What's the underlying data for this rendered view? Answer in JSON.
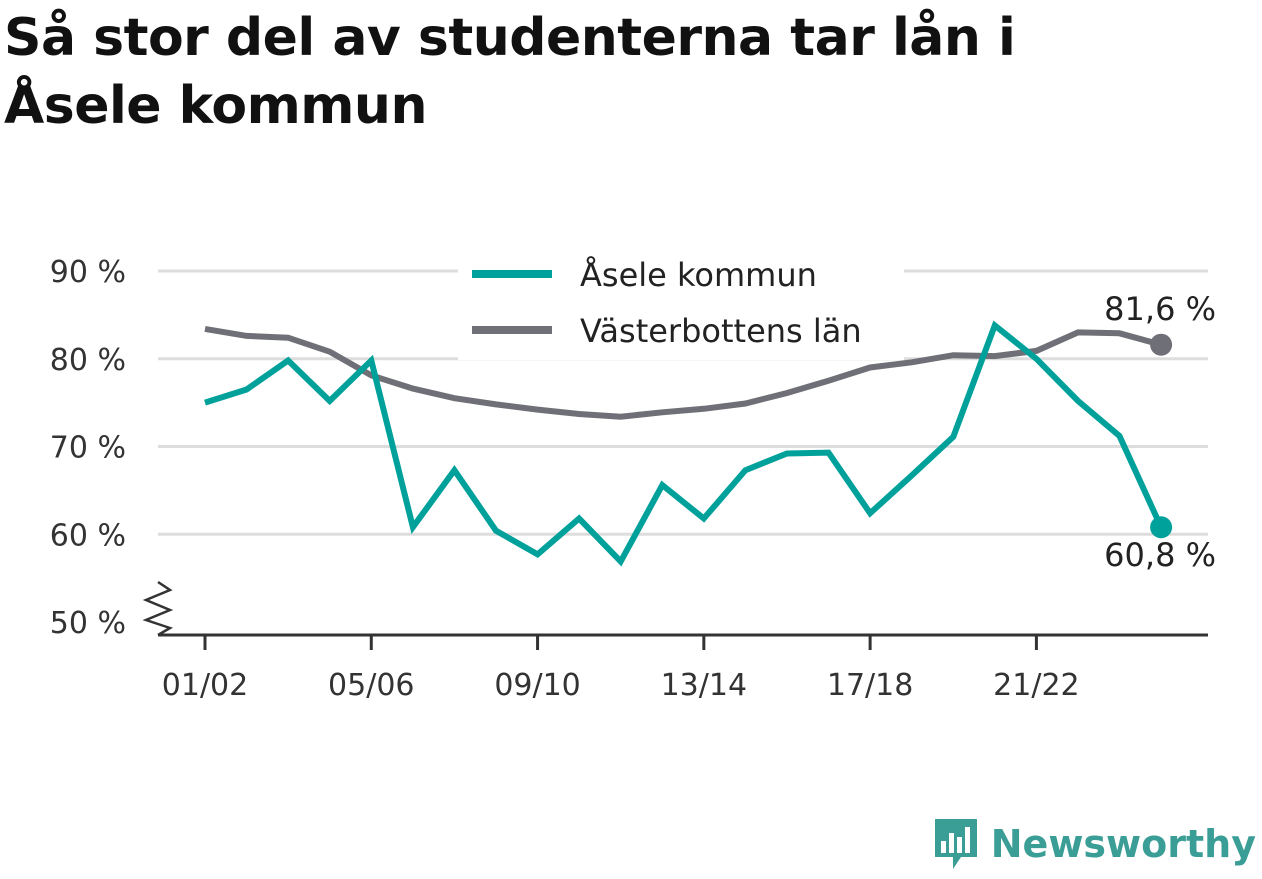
{
  "title": "Så stor del av studenterna tar lån i Åsele kommun",
  "colors": {
    "series_1": "#00a19a",
    "series_2": "#6f6f77",
    "grid": "#dddddd",
    "axis": "#333333",
    "brand": "#3a9d96"
  },
  "legend": {
    "items": [
      "Åsele kommun",
      "Västerbottens län"
    ]
  },
  "end_labels": {
    "series_1": "60,8 %",
    "series_2": "81,6 %"
  },
  "logo": {
    "text": "Newsworthy",
    "icon": "bar-chart-icon"
  },
  "chart_data": {
    "type": "line",
    "title": "Så stor del av studenterna tar lån i Åsele kommun",
    "xlabel": "",
    "ylabel": "",
    "x": [
      "01/02",
      "02/03",
      "03/04",
      "04/05",
      "05/06",
      "06/07",
      "07/08",
      "08/09",
      "09/10",
      "10/11",
      "11/12",
      "12/13",
      "13/14",
      "14/15",
      "15/16",
      "16/17",
      "17/18",
      "18/19",
      "19/20",
      "20/21",
      "21/22",
      "22/23",
      "23/24",
      "24/25"
    ],
    "x_tick_labels": [
      "01/02",
      "05/06",
      "09/10",
      "13/14",
      "17/18",
      "21/22"
    ],
    "y_ticks": [
      50,
      60,
      70,
      80,
      90
    ],
    "y_tick_labels": [
      "50 %",
      "60 %",
      "70 %",
      "80 %",
      "90 %"
    ],
    "ylim": [
      50,
      90
    ],
    "y_axis_break": true,
    "grid": true,
    "legend_position": "top-center",
    "series": [
      {
        "name": "Åsele kommun",
        "values": [
          75.0,
          76.5,
          79.8,
          75.2,
          79.8,
          60.8,
          67.3,
          60.4,
          57.7,
          61.8,
          56.9,
          65.6,
          61.8,
          67.3,
          69.2,
          69.3,
          62.4,
          66.7,
          71.1,
          83.8,
          80.0,
          75.2,
          71.2,
          60.8
        ]
      },
      {
        "name": "Västerbottens län",
        "values": [
          83.4,
          82.6,
          82.4,
          80.8,
          78.1,
          76.6,
          75.5,
          74.8,
          74.2,
          73.7,
          73.4,
          73.9,
          74.3,
          74.9,
          76.1,
          77.5,
          79.0,
          79.6,
          80.4,
          80.3,
          80.9,
          83.0,
          82.9,
          81.6
        ]
      }
    ]
  }
}
